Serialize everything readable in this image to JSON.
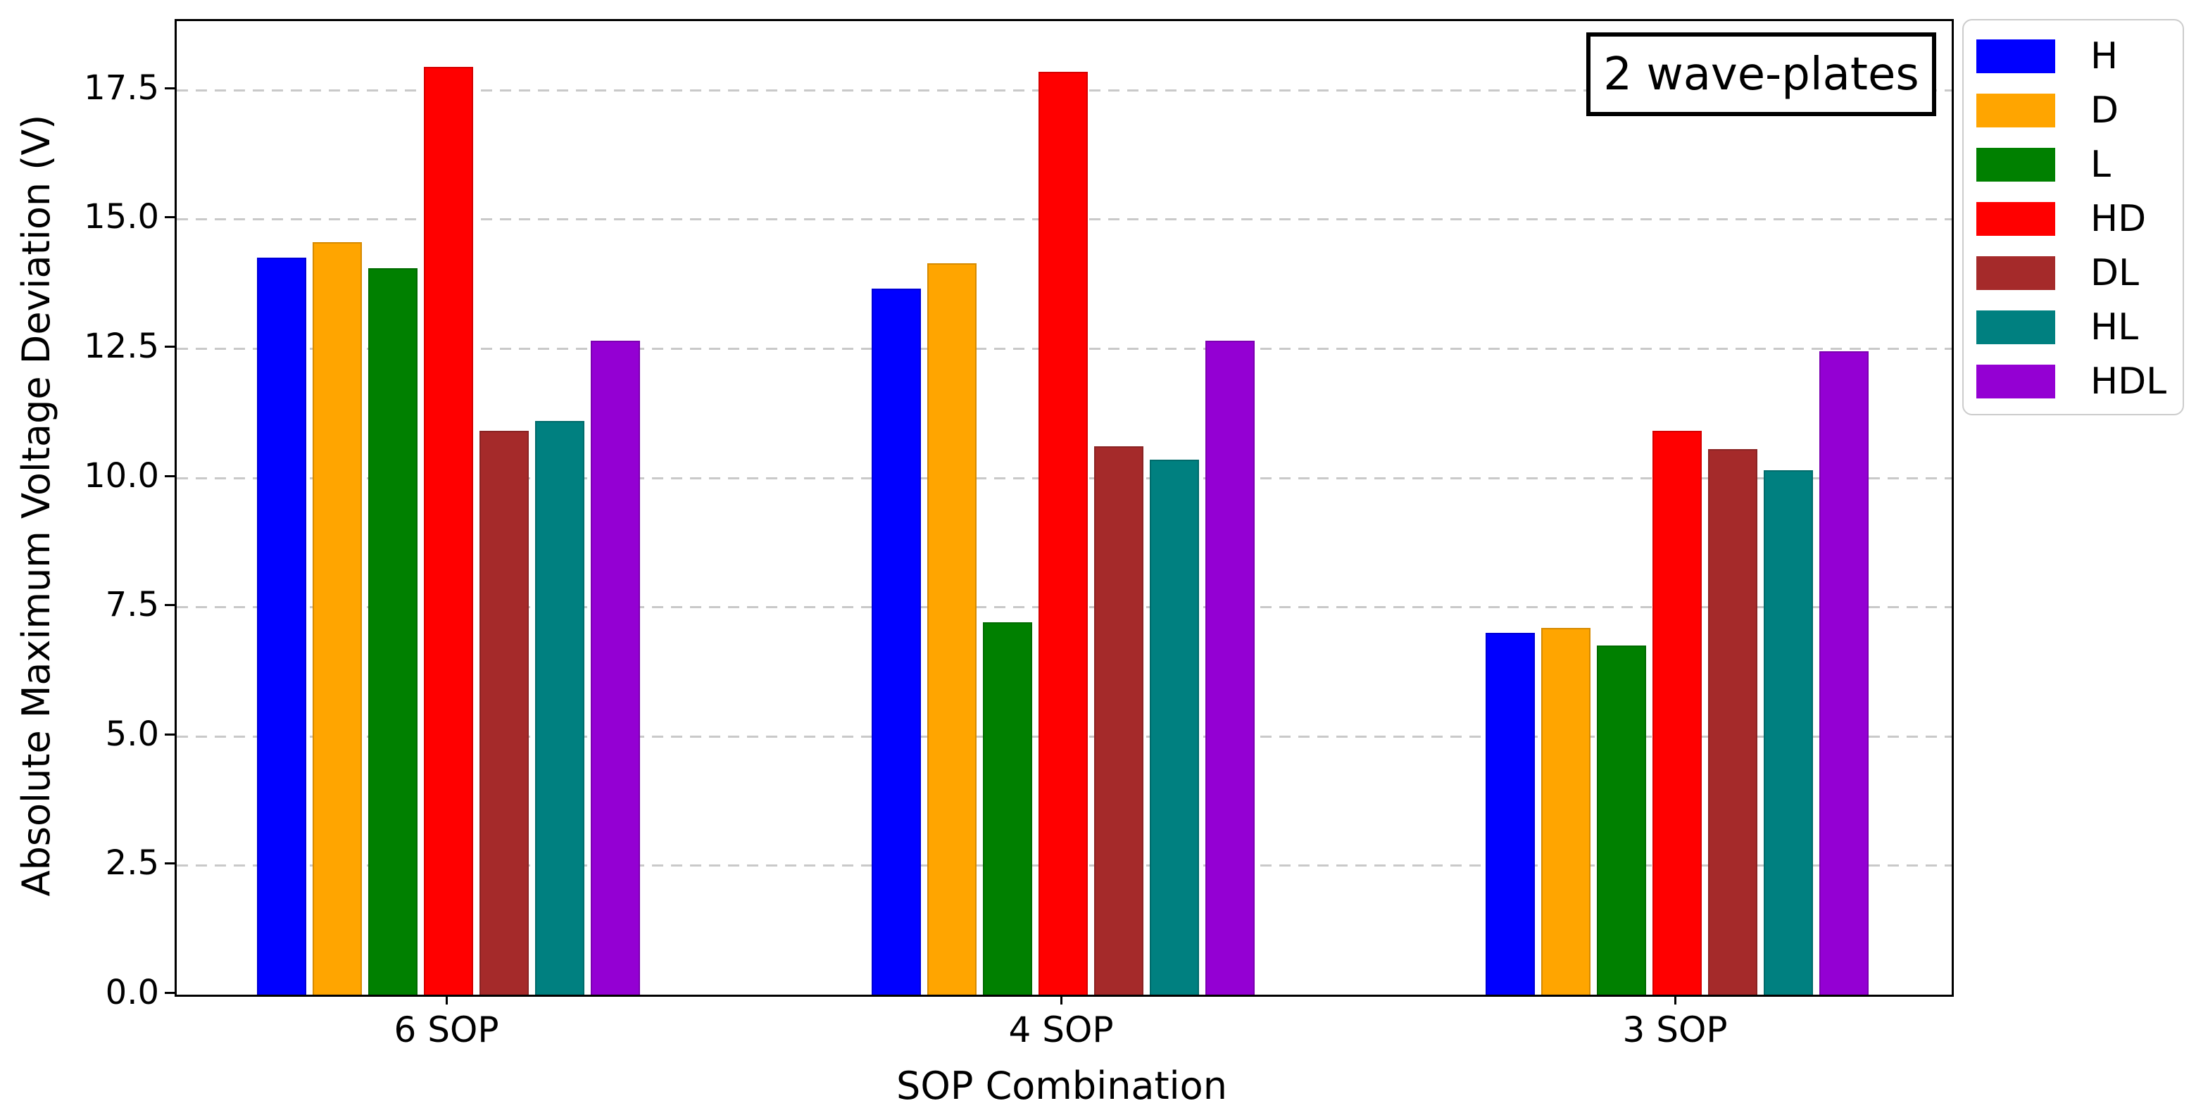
{
  "chart_data": {
    "type": "bar",
    "title": "",
    "xlabel": "SOP Combination",
    "ylabel": "Absolute Maximum Voltage Deviation (V)",
    "annotation": "2 wave-plates",
    "categories": [
      "6 SOP",
      "4 SOP",
      "3 SOP"
    ],
    "series": [
      {
        "name": "H",
        "color": "#0000ff",
        "values": [
          14.25,
          13.65,
          7.0
        ]
      },
      {
        "name": "D",
        "color": "#ffa500",
        "values": [
          14.55,
          14.15,
          7.1
        ]
      },
      {
        "name": "L",
        "color": "#008000",
        "values": [
          14.05,
          7.2,
          6.75
        ]
      },
      {
        "name": "HD",
        "color": "#ff0000",
        "values": [
          17.95,
          17.85,
          10.9
        ]
      },
      {
        "name": "DL",
        "color": "#a52a2a",
        "values": [
          10.9,
          10.6,
          10.55
        ]
      },
      {
        "name": "HL",
        "color": "#008080",
        "values": [
          11.1,
          10.35,
          10.15
        ]
      },
      {
        "name": "HDL",
        "color": "#9400d3",
        "values": [
          12.65,
          12.65,
          12.45
        ]
      }
    ],
    "yticks": [
      0.0,
      2.5,
      5.0,
      7.5,
      10.0,
      12.5,
      15.0,
      17.5
    ],
    "ytick_labels": [
      "0.0",
      "2.5",
      "5.0",
      "7.5",
      "10.0",
      "12.5",
      "15.0",
      "17.5"
    ],
    "ylim": [
      0,
      18.83
    ],
    "grid": "horizontal-dashed",
    "grid_color": "#c3c3c3",
    "legend_position": "outside-right",
    "annotation_position": "top-right-inside"
  }
}
